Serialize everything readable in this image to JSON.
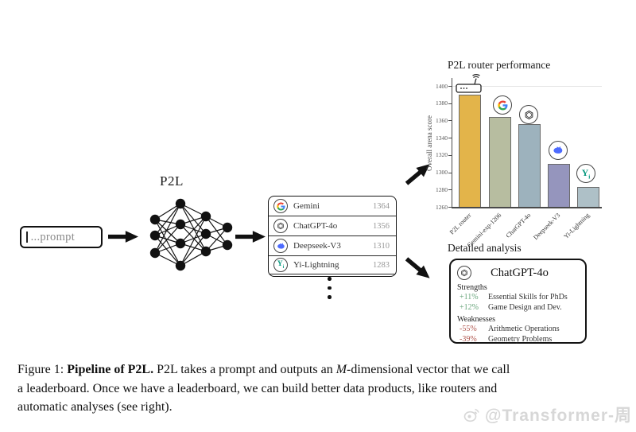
{
  "figure": {
    "prompt_text": "...prompt",
    "network_label": "P2L",
    "leaderboard": {
      "rows": [
        {
          "model": "Gemini",
          "score": "1364",
          "icon": "google-icon"
        },
        {
          "model": "ChatGPT-4o",
          "score": "1356",
          "icon": "openai-icon"
        },
        {
          "model": "Deepseek-V3",
          "score": "1310",
          "icon": "deepseek-icon"
        },
        {
          "model": "Yi-Lightning",
          "score": "1283",
          "icon": "yi-icon"
        }
      ]
    }
  },
  "chart_data": {
    "type": "bar",
    "title": "P2L router performance",
    "ylabel": "Overall arena score",
    "categories": [
      "P2L router",
      "Gemini-exp-1206",
      "ChatGPT-4o",
      "Deepseek-V3",
      "Yi-Lightning"
    ],
    "values": [
      1390,
      1364,
      1356,
      1310,
      1283
    ],
    "bar_colors": [
      "#e3b44a",
      "#b7bda0",
      "#9db2bd",
      "#9595bd",
      "#aec0c7"
    ],
    "bar_icons": [
      "router-icon",
      "google-icon",
      "openai-icon",
      "deepseek-icon",
      "yi-icon"
    ],
    "ylim": [
      1260,
      1405
    ],
    "yticks": [
      1260,
      1280,
      1300,
      1320,
      1340,
      1360,
      1380,
      1400
    ],
    "grid": "off",
    "legend": "none"
  },
  "analysis": {
    "section_label": "Detailed analysis",
    "model_title": "ChatGPT-4o",
    "strengths_label": "Strengths",
    "strengths": [
      {
        "pct": "+11%",
        "topic": "Essential Skills for PhDs"
      },
      {
        "pct": "+12%",
        "topic": "Game Design and Dev."
      }
    ],
    "weaknesses_label": "Weaknesses",
    "weaknesses": [
      {
        "pct": "-55%",
        "topic": "Arithmetic Operations"
      },
      {
        "pct": "-39%",
        "topic": "Geometry Problems"
      }
    ],
    "positive_color": "#6aa77d",
    "negative_color": "#b0564e"
  },
  "caption": {
    "figure_label": "Figure 1: ",
    "bold_title": "Pipeline of P2L. ",
    "line1_a": "P2L takes a prompt and outputs an ",
    "italic_var": "M",
    "line1_b": "-dimensional vector that we call",
    "line2": "a leaderboard. Once we have a leaderboard, we can build better data products, like routers and",
    "line3": "automatic analyses (see right)."
  },
  "watermark": {
    "text": "@Transformer-周"
  }
}
